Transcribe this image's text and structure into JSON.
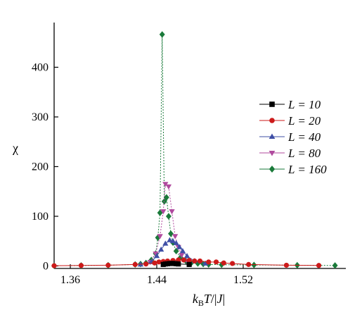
{
  "chart_data": {
    "type": "line",
    "title": "",
    "xlabel": "k_B T/|J|",
    "ylabel": "χ",
    "xlim": [
      1.345,
      1.615
    ],
    "ylim": [
      -5,
      490
    ],
    "xticks": [
      1.36,
      1.44,
      1.52
    ],
    "xtick_labels": [
      "1.36",
      "1.44",
      "1.52"
    ],
    "yticks": [
      0,
      100,
      200,
      300,
      400
    ],
    "ytick_labels": [
      "0",
      "100",
      "200",
      "300",
      "400"
    ],
    "grid": false,
    "legend_position": "right",
    "series": [
      {
        "name": "L = 10",
        "color": "#000000",
        "marker": "square",
        "dashed": false,
        "x": [
          1.446,
          1.448,
          1.45,
          1.452,
          1.454,
          1.456,
          1.458,
          1.46,
          1.47
        ],
        "y": [
          3,
          4,
          4.5,
          5,
          5,
          5,
          4.5,
          4,
          3
        ]
      },
      {
        "name": "L = 20",
        "color": "#cc1a1a",
        "marker": "circle",
        "dashed": false,
        "x": [
          1.345,
          1.37,
          1.395,
          1.42,
          1.43,
          1.438,
          1.442,
          1.446,
          1.45,
          1.455,
          1.46,
          1.465,
          1.47,
          1.475,
          1.48,
          1.488,
          1.495,
          1.502,
          1.51,
          1.525,
          1.56,
          1.59
        ],
        "y": [
          0.5,
          1,
          1.5,
          3,
          4,
          6,
          8,
          9,
          10,
          11,
          12,
          12,
          11,
          10,
          10,
          8,
          8,
          6,
          5,
          3,
          1.5,
          1
        ]
      },
      {
        "name": "L = 40",
        "color": "#3f4fa6",
        "marker": "triangle-up",
        "dashed": false,
        "x": [
          1.425,
          1.435,
          1.44,
          1.444,
          1.448,
          1.452,
          1.455,
          1.458,
          1.461,
          1.464,
          1.468,
          1.475,
          1.485
        ],
        "y": [
          3,
          8,
          20,
          33,
          45,
          52,
          50,
          46,
          38,
          30,
          20,
          10,
          5
        ]
      },
      {
        "name": "L = 80",
        "color": "#b04a9e",
        "marker": "triangle-down",
        "dashed": true,
        "x": [
          1.434,
          1.439,
          1.443,
          1.446,
          1.448,
          1.451,
          1.454,
          1.457,
          1.46,
          1.463,
          1.468
        ],
        "y": [
          8,
          25,
          60,
          110,
          165,
          160,
          110,
          60,
          38,
          22,
          10
        ]
      },
      {
        "name": "L = 160",
        "color": "#1a7a3a",
        "marker": "diamond",
        "dashed": true,
        "x": [
          1.345,
          1.37,
          1.395,
          1.42,
          1.425,
          1.43,
          1.435,
          1.439,
          1.441,
          1.443,
          1.445,
          1.447,
          1.449,
          1.451,
          1.453,
          1.455,
          1.458,
          1.462,
          1.467,
          1.472,
          1.478,
          1.483,
          1.488,
          1.5,
          1.53,
          1.57,
          1.605
        ],
        "y": [
          0.5,
          1,
          1.5,
          3,
          4,
          6,
          12,
          25,
          57,
          107,
          466,
          130,
          138,
          100,
          65,
          47,
          30,
          17,
          10,
          6,
          5,
          4,
          3,
          2.5,
          2,
          1.5,
          1
        ]
      }
    ]
  }
}
